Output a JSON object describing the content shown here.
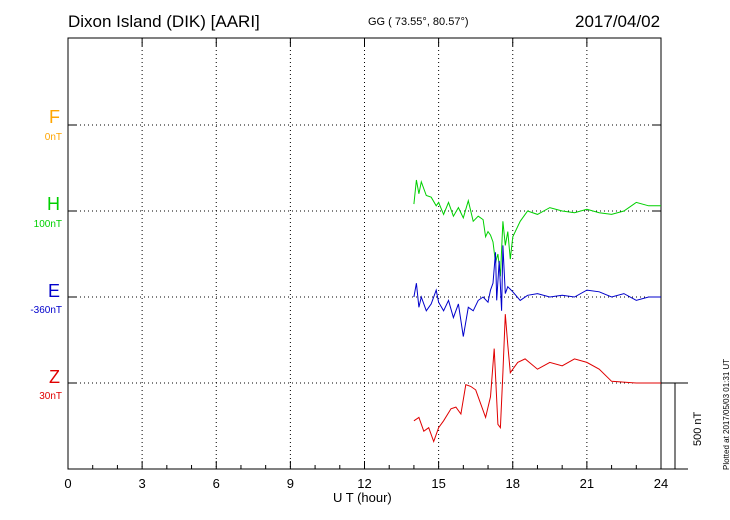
{
  "header": {
    "station": "Dixon Island (DIK)  [AARI]",
    "coords": "GG ( 73.55°,  80.57°)",
    "date": "2017/04/02"
  },
  "footer": {
    "credit": "Plotted at 2017/05/03 01:31  UT"
  },
  "scale": {
    "label": "500 nT",
    "nT": 500
  },
  "components": [
    {
      "letter": "F",
      "baseline_label": "0nT",
      "color": "#ffa500"
    },
    {
      "letter": "H",
      "baseline_label": "100nT",
      "color": "#00d000"
    },
    {
      "letter": "E",
      "baseline_label": "-360nT",
      "color": "#0000cc"
    },
    {
      "letter": "Z",
      "baseline_label": "30nT",
      "color": "#e00000"
    }
  ],
  "chart_data": {
    "type": "line",
    "title": "Dixon Island (DIK)  [AARI]",
    "xlabel": "U T (hour)",
    "ylabel": "",
    "xlim": [
      0,
      24
    ],
    "xticks": [
      "0",
      "3",
      "6",
      "9",
      "12",
      "15",
      "18",
      "21",
      "24"
    ],
    "grid": true,
    "units": "nT offset from baseline",
    "series": [
      {
        "name": "F",
        "color": "#ffa500",
        "baseline": "0nT",
        "x": [],
        "y": []
      },
      {
        "name": "H",
        "color": "#00d000",
        "baseline": "100nT",
        "x": [
          14.0,
          14.1,
          14.2,
          14.3,
          14.5,
          14.7,
          14.9,
          15.0,
          15.2,
          15.4,
          15.6,
          15.8,
          16.0,
          16.2,
          16.4,
          16.6,
          16.8,
          16.9,
          17.0,
          17.1,
          17.2,
          17.3,
          17.4,
          17.5,
          17.6,
          17.7,
          17.8,
          17.9,
          18.0,
          18.3,
          18.6,
          19.0,
          19.5,
          20.0,
          20.5,
          21.0,
          21.5,
          22.0,
          22.5,
          23.0,
          23.5,
          24.0
        ],
        "y": [
          40,
          180,
          100,
          170,
          90,
          80,
          30,
          50,
          -20,
          50,
          -30,
          20,
          -40,
          60,
          -60,
          -30,
          -50,
          -150,
          -120,
          -140,
          -180,
          -300,
          -250,
          -380,
          -60,
          -200,
          -120,
          -280,
          -150,
          -60,
          0,
          -20,
          20,
          0,
          -10,
          10,
          -10,
          -20,
          0,
          50,
          30,
          30
        ]
      },
      {
        "name": "E",
        "color": "#0000cc",
        "baseline": "-360nT",
        "x": [
          14.0,
          14.1,
          14.2,
          14.3,
          14.5,
          14.7,
          14.9,
          15.0,
          15.2,
          15.4,
          15.6,
          15.8,
          16.0,
          16.2,
          16.4,
          16.6,
          16.8,
          17.0,
          17.1,
          17.2,
          17.3,
          17.35,
          17.45,
          17.55,
          17.6,
          17.7,
          17.8,
          18.0,
          18.3,
          18.6,
          19.0,
          19.5,
          20.0,
          20.5,
          21.0,
          21.5,
          22.0,
          22.5,
          23.0,
          23.5,
          24.0
        ],
        "y": [
          0,
          80,
          -60,
          0,
          -80,
          -40,
          40,
          -30,
          -80,
          -20,
          -120,
          -40,
          -230,
          -60,
          -80,
          -20,
          0,
          -30,
          40,
          80,
          260,
          -20,
          210,
          -80,
          300,
          20,
          60,
          30,
          -20,
          10,
          20,
          0,
          10,
          0,
          40,
          30,
          0,
          20,
          -20,
          0,
          0
        ]
      },
      {
        "name": "Z",
        "color": "#e00000",
        "baseline": "30nT",
        "x": [
          14.0,
          14.2,
          14.4,
          14.6,
          14.8,
          15.0,
          15.2,
          15.5,
          15.7,
          15.9,
          16.1,
          16.3,
          16.5,
          16.7,
          16.9,
          17.1,
          17.25,
          17.4,
          17.5,
          17.6,
          17.7,
          17.8,
          17.9,
          18.0,
          18.2,
          18.5,
          19.0,
          19.5,
          20.0,
          20.5,
          21.0,
          21.5,
          22.0,
          23.0,
          24.0
        ],
        "y": [
          -220,
          -200,
          -280,
          -260,
          -340,
          -260,
          -220,
          -150,
          -140,
          -180,
          -10,
          -20,
          -40,
          -120,
          -200,
          -80,
          200,
          -240,
          -260,
          60,
          400,
          220,
          60,
          80,
          120,
          140,
          80,
          120,
          100,
          140,
          120,
          80,
          10,
          0,
          0
        ]
      }
    ]
  }
}
